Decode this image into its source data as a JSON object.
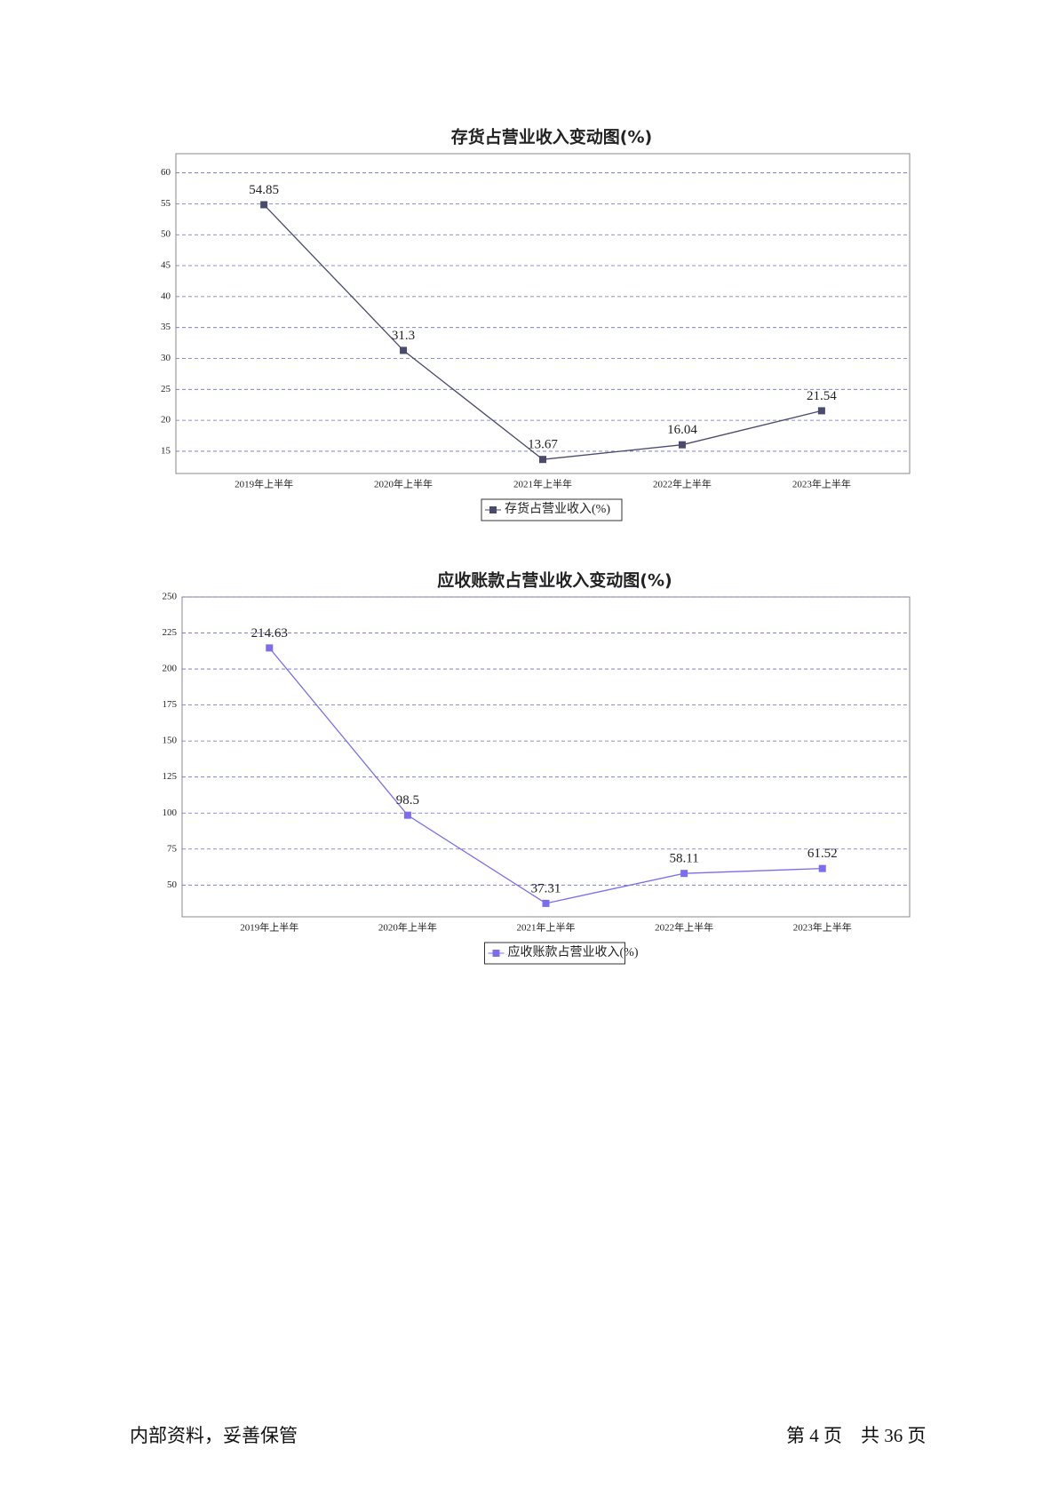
{
  "chart_data": [
    {
      "type": "line",
      "title": "存货占营业收入变动图(%)",
      "categories": [
        "2019年上半年",
        "2020年上半年",
        "2021年上半年",
        "2022年上半年",
        "2023年上半年"
      ],
      "series": [
        {
          "name": "存货占营业收入(%)",
          "color": "#4a4a6e",
          "values": [
            54.85,
            31.3,
            13.67,
            16.04,
            21.54
          ]
        }
      ],
      "ylim": [
        11.4,
        63.1
      ],
      "yticks": [
        15,
        20,
        25,
        30,
        35,
        40,
        45,
        50,
        55,
        60
      ],
      "grid": true,
      "legend": "bottom"
    },
    {
      "type": "line",
      "title": "应收账款占营业收入变动图(%)",
      "categories": [
        "2019年上半年",
        "2020年上半年",
        "2021年上半年",
        "2022年上半年",
        "2023年上半年"
      ],
      "series": [
        {
          "name": "应收账款占营业收入(%)",
          "color": "#7b6cf0",
          "values": [
            214.63,
            98.5,
            37.31,
            58.11,
            61.52
          ]
        }
      ],
      "ylim": [
        28,
        250
      ],
      "yticks": [
        50,
        75,
        100,
        125,
        150,
        175,
        200,
        225,
        250
      ],
      "grid": true,
      "legend": "bottom"
    }
  ],
  "footer": {
    "left": "内部资料，妥善保管",
    "right": "第 4 页　共 36 页"
  }
}
